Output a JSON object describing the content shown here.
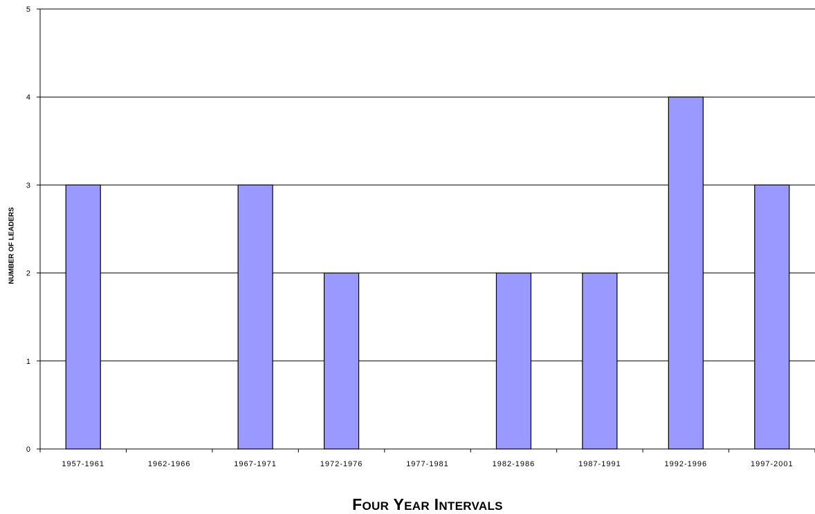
{
  "chart_data": {
    "type": "bar",
    "categories": [
      "1957-1961",
      "1962-1966",
      "1967-1971",
      "1972-1976",
      "1977-1981",
      "1982-1986",
      "1987-1991",
      "1992-1996",
      "1997-2001"
    ],
    "values": [
      3,
      0,
      3,
      2,
      0,
      2,
      2,
      4,
      3
    ],
    "title": "",
    "xlabel": "Four Year Intervals",
    "ylabel": "NUMBER OF LEADERS",
    "ylim": [
      0,
      5
    ],
    "yticks": [
      0,
      1,
      2,
      3,
      4,
      5
    ],
    "grid": true,
    "bar_color": "#9999ff",
    "bar_edge_color": "#000000"
  }
}
